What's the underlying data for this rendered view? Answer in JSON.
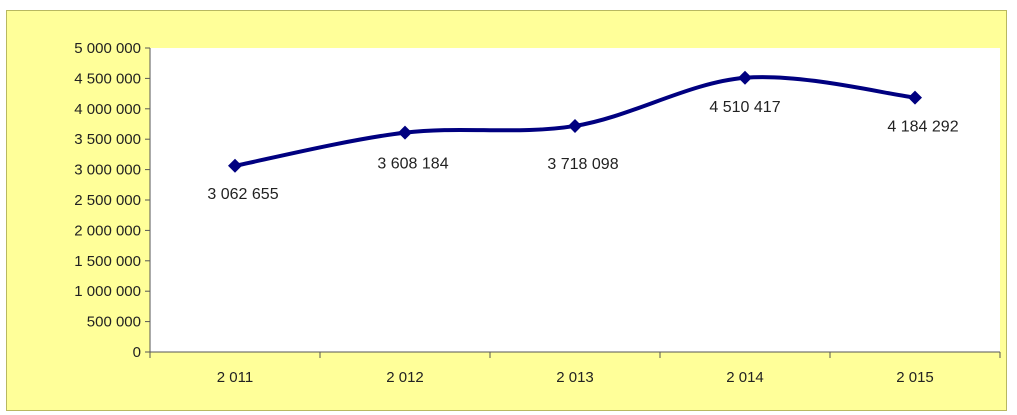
{
  "chart_data": {
    "type": "line",
    "title": "",
    "xlabel": "",
    "ylabel": "",
    "categories": [
      "2 011",
      "2 012",
      "2 013",
      "2 014",
      "2 015"
    ],
    "series": [
      {
        "values": [
          3062655,
          3608184,
          3718098,
          4510417,
          4184292
        ],
        "data_labels": [
          "3 062 655",
          "3 608 184",
          "3 718 098",
          "4 510 417",
          "4 184 292"
        ],
        "color": "#000080",
        "marker": "diamond",
        "smooth": true
      }
    ],
    "ylim": [
      0,
      5000000
    ],
    "y_tick_values": [
      0,
      500000,
      1000000,
      1500000,
      2000000,
      2500000,
      3000000,
      3500000,
      4000000,
      4500000,
      5000000
    ],
    "y_tick_labels": [
      "0",
      "500 000",
      "1 000 000",
      "1 500 000",
      "2 000 000",
      "2 500 000",
      "3 000 000",
      "3 500 000",
      "4 000 000",
      "4 500 000",
      "5 000 000"
    ],
    "grid": false,
    "legend": "none",
    "colors": {
      "chart_background": "#ffff99",
      "plot_background": "#ffffff",
      "line": "#000080"
    }
  }
}
